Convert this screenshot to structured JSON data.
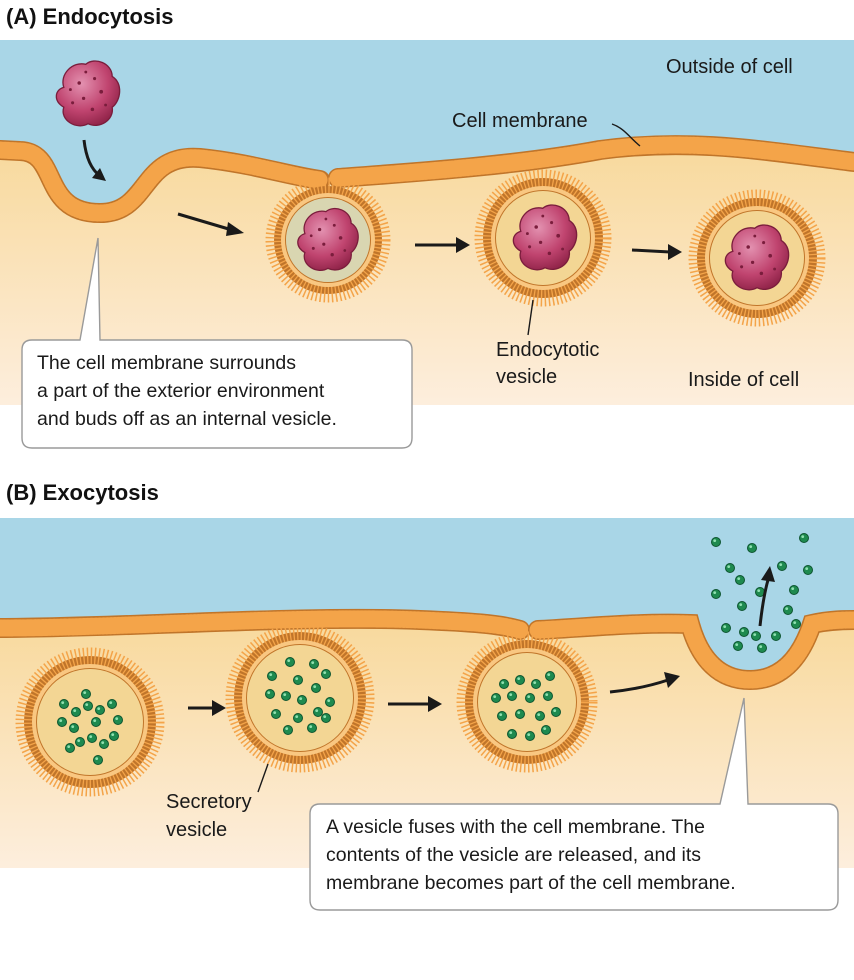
{
  "colors": {
    "outside": "#a9d6e7",
    "inside": "#fbe6bf",
    "membrane_dark": "#c0752a",
    "membrane_light": "#f4a449",
    "vesicle_interior": "#f3d694",
    "particle": "#c0446f",
    "molecule": "#1e8a4f"
  },
  "panel_a": {
    "title": "(A)  Endocytosis",
    "outside_label": "Outside of cell",
    "membrane_label": "Cell membrane",
    "vesicle_label_1": "Endocytotic",
    "vesicle_label_2": "vesicle",
    "inside_label": "Inside of cell",
    "callout": [
      "The cell membrane surrounds",
      "a part of the exterior environment",
      "and buds off as an internal vesicle."
    ]
  },
  "panel_b": {
    "title": "(B)  Exocytosis",
    "vesicle_label_1": "Secretory",
    "vesicle_label_2": "vesicle",
    "callout": [
      "A vesicle fuses with the cell membrane. The",
      "contents of the vesicle are released, and its",
      "membrane becomes part of the cell membrane."
    ]
  }
}
